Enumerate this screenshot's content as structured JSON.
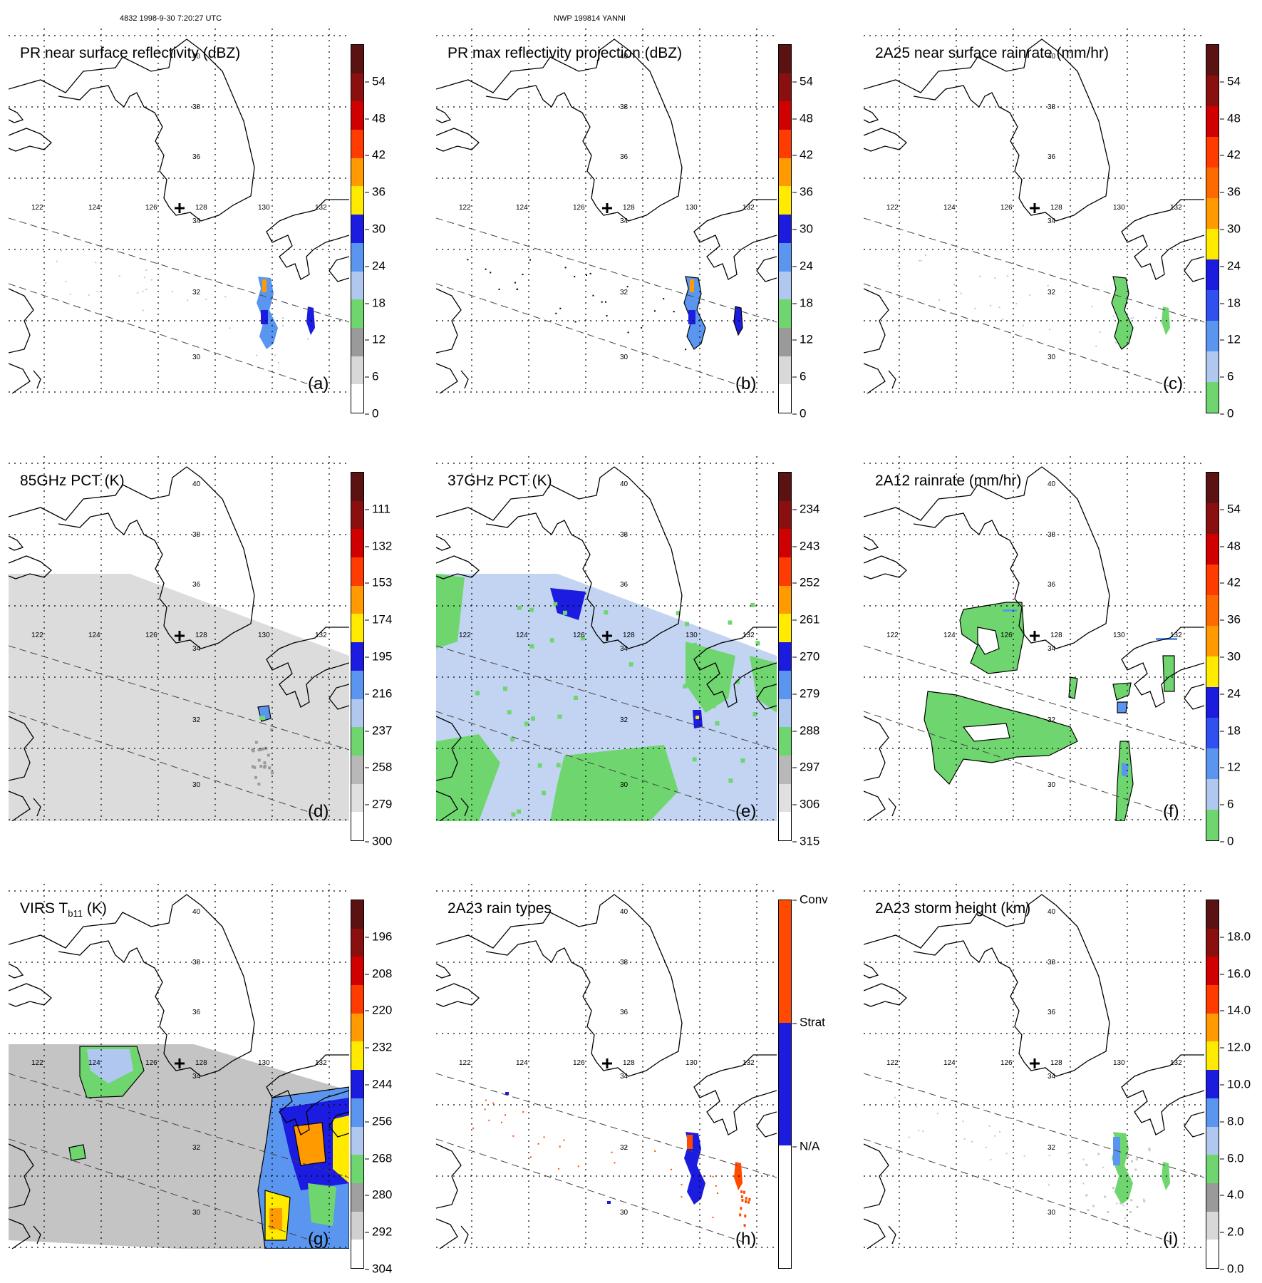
{
  "figure": {
    "header_left": "4832 1998-9-30 7:20:27 UTC",
    "header_center": "NWP 199814 YANNI"
  },
  "map": {
    "lat_labels": [
      "40",
      "38",
      "36",
      "34",
      "32",
      "30"
    ],
    "lon_labels": [
      "122",
      "124",
      "126",
      "128",
      "130",
      "132"
    ]
  },
  "panels": [
    {
      "title": "PR near surface reflectivity (dBZ)",
      "label": "(a)",
      "field": "pr_refl",
      "colorbar": {
        "labels": [
          "0",
          "6",
          "12",
          "18",
          "24",
          "30",
          "36",
          "42",
          "48",
          "54"
        ],
        "colors": [
          "#ffffff",
          "#d8d8d8",
          "#9a9a9a",
          "#6fd66f",
          "#b0c8f0",
          "#5a96f0",
          "#1c1ce0",
          "#ffea00",
          "#ff9a00",
          "#ff3c00",
          "#d00000",
          "#8a1010",
          "#5a1212"
        ]
      }
    },
    {
      "title": "PR max reflectivity projection (dBZ)",
      "label": "(b)",
      "field": "pr_max",
      "colorbar": {
        "labels": [
          "0",
          "6",
          "12",
          "18",
          "24",
          "30",
          "36",
          "42",
          "48",
          "54"
        ],
        "colors": [
          "#ffffff",
          "#d8d8d8",
          "#9a9a9a",
          "#6fd66f",
          "#b0c8f0",
          "#5a96f0",
          "#1c1ce0",
          "#ffea00",
          "#ff9a00",
          "#ff3c00",
          "#d00000",
          "#8a1010",
          "#5a1212"
        ]
      }
    },
    {
      "title": "2A25 near surface rainrate (mm/hr)",
      "label": "(c)",
      "field": "pr_rain",
      "colorbar": {
        "labels": [
          "0",
          "6",
          "12",
          "18",
          "24",
          "30",
          "36",
          "42",
          "48",
          "54"
        ],
        "colors": [
          "#6fd66f",
          "#b0c8f0",
          "#5a96f0",
          "#3050f0",
          "#1c1ce0",
          "#ffea00",
          "#ff9a00",
          "#ff6a00",
          "#ff3c00",
          "#d00000",
          "#8a1010",
          "#5a1212"
        ]
      }
    },
    {
      "title": "85GHz PCT (K)",
      "label": "(d)",
      "field": "pct85",
      "colorbar": {
        "labels": [
          "300",
          "279",
          "258",
          "237",
          "216",
          "195",
          "174",
          "153",
          "132",
          "111"
        ],
        "colors": [
          "#ffffff",
          "#e0e0e0",
          "#b8b8b8",
          "#6fd66f",
          "#b0c8f0",
          "#5a96f0",
          "#1c1ce0",
          "#ffea00",
          "#ff9a00",
          "#ff3c00",
          "#d00000",
          "#8a1010",
          "#5a1212"
        ]
      }
    },
    {
      "title": "37GHz PCT (K)",
      "label": "(e)",
      "field": "pct37",
      "colorbar": {
        "labels": [
          "315",
          "306",
          "297",
          "288",
          "279",
          "270",
          "261",
          "252",
          "243",
          "234"
        ],
        "colors": [
          "#ffffff",
          "#e0e0e0",
          "#b8b8b8",
          "#6fd66f",
          "#b0c8f0",
          "#5a96f0",
          "#1c1ce0",
          "#ffea00",
          "#ff9a00",
          "#ff3c00",
          "#d00000",
          "#8a1010",
          "#5a1212"
        ]
      }
    },
    {
      "title": "2A12 rainrate (mm/hr)",
      "label": "(f)",
      "field": "tmi_rain",
      "colorbar": {
        "labels": [
          "0",
          "6",
          "12",
          "18",
          "24",
          "30",
          "36",
          "42",
          "48",
          "54"
        ],
        "colors": [
          "#6fd66f",
          "#b0c8f0",
          "#5a96f0",
          "#3050f0",
          "#1c1ce0",
          "#ffea00",
          "#ff9a00",
          "#ff6a00",
          "#ff3c00",
          "#d00000",
          "#8a1010",
          "#5a1212"
        ]
      }
    },
    {
      "title": "VIRS T",
      "title_sub": "b11",
      "title_tail": " (K)",
      "label": "(g)",
      "field": "virs",
      "colorbar": {
        "labels": [
          "304",
          "292",
          "280",
          "268",
          "256",
          "244",
          "232",
          "220",
          "208",
          "196"
        ],
        "colors": [
          "#ffffff",
          "#d0d0d0",
          "#a0a0a0",
          "#6fd66f",
          "#b0c8f0",
          "#5a96f0",
          "#1c1ce0",
          "#ffea00",
          "#ff9a00",
          "#ff3c00",
          "#d00000",
          "#8a1010",
          "#5a1212"
        ]
      }
    },
    {
      "title": "2A23 rain types",
      "label": "(h)",
      "field": "raintype",
      "colorbar": {
        "labels": [
          "N/A",
          "Strat",
          "Conv"
        ],
        "colors": [
          "#ffffff",
          "#1c1ce0",
          "#ff4a00"
        ]
      }
    },
    {
      "title": "2A23 storm height (km)",
      "label": "(i)",
      "field": "stormht",
      "colorbar": {
        "labels": [
          "0.0",
          "2.0",
          "4.0",
          "6.0",
          "8.0",
          "10.0",
          "12.0",
          "14.0",
          "16.0",
          "18.0"
        ],
        "colors": [
          "#ffffff",
          "#d8d8d8",
          "#9a9a9a",
          "#6fd66f",
          "#b0c8f0",
          "#5a96f0",
          "#1c1ce0",
          "#ffea00",
          "#ff9a00",
          "#ff3c00",
          "#d00000",
          "#8a1010",
          "#5a1212"
        ]
      }
    }
  ]
}
